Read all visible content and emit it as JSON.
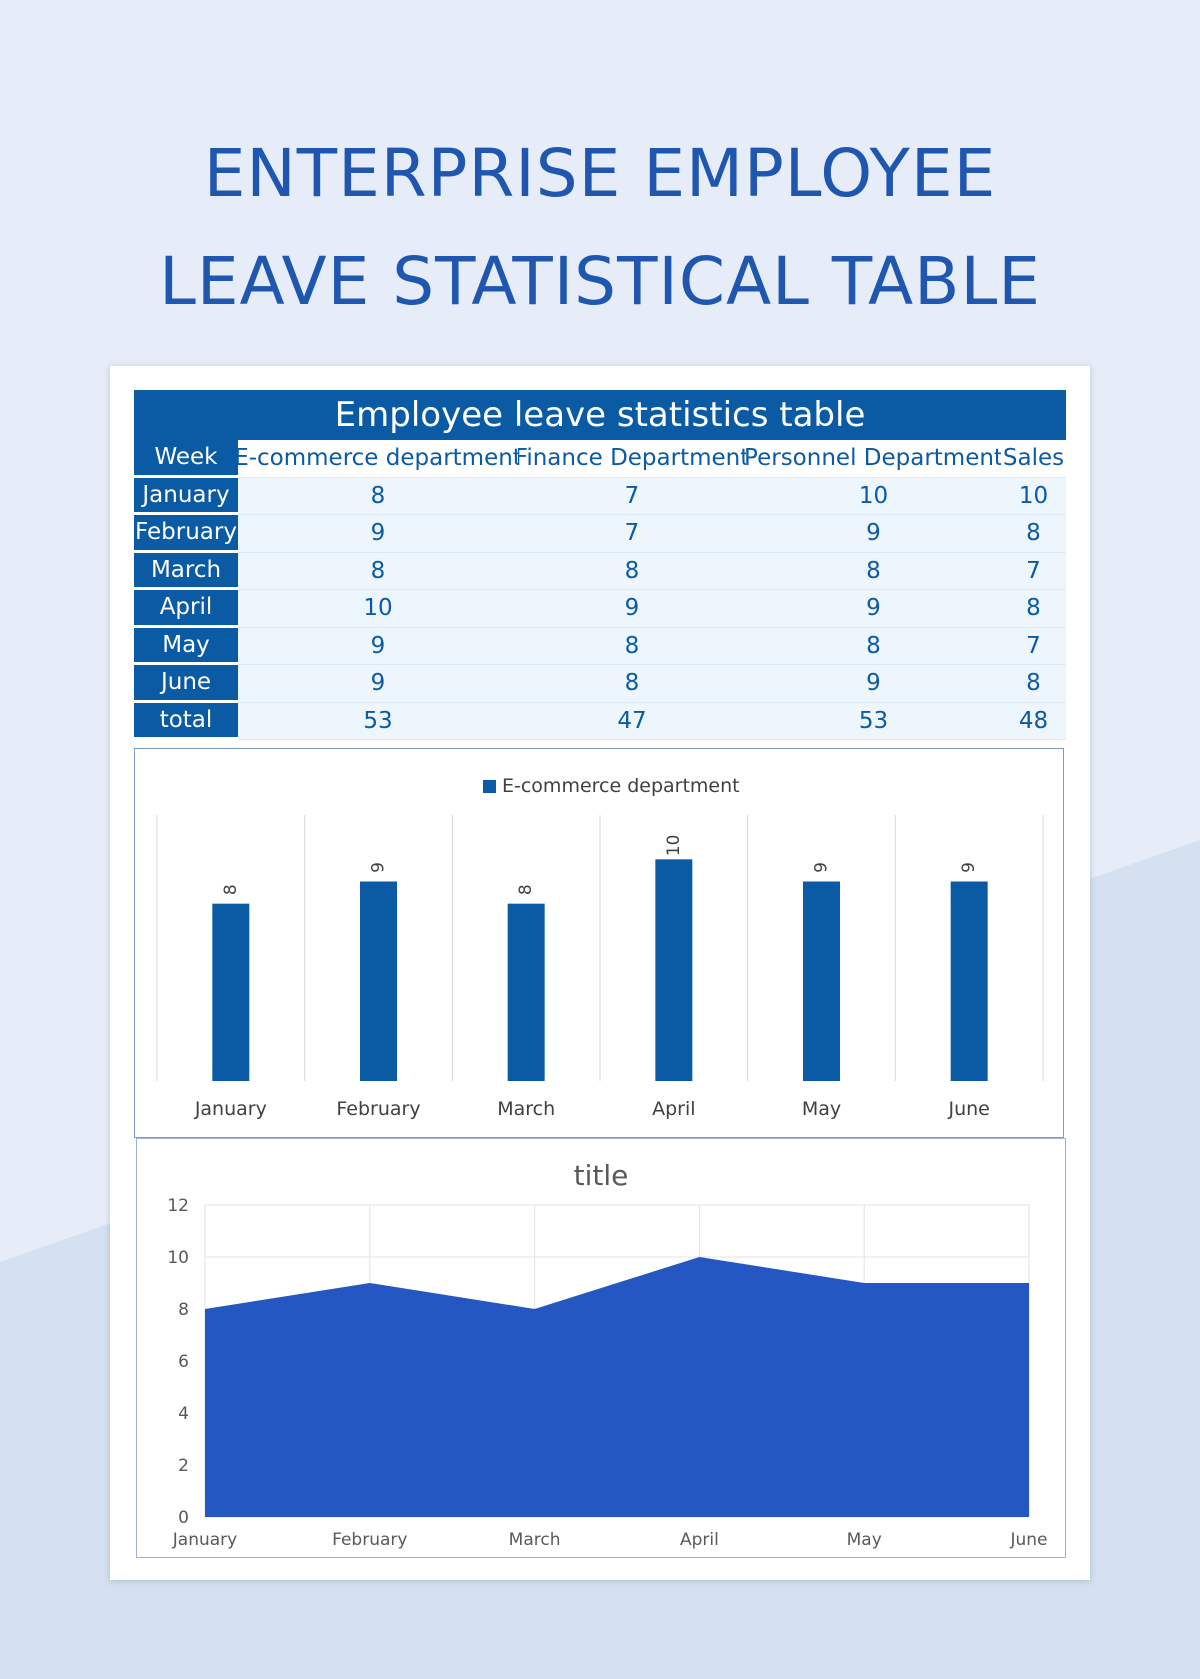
{
  "page": {
    "title_line1": "ENTERPRISE EMPLOYEE",
    "title_line2": "LEAVE STATISTICAL TABLE"
  },
  "colors": {
    "primary": "#0b5aa4",
    "area": "#2457c2",
    "title": "#1f56b0",
    "background": "#e6edf8"
  },
  "table": {
    "title": "Employee leave statistics table",
    "headers": [
      "Week",
      "E-commerce department",
      "Finance Department",
      "Personnel Department",
      "Sales"
    ],
    "rows": [
      {
        "label": "January",
        "values": [
          "8",
          "7",
          "10",
          "10"
        ]
      },
      {
        "label": "February",
        "values": [
          "9",
          "7",
          "9",
          "8"
        ]
      },
      {
        "label": "March",
        "values": [
          "8",
          "8",
          "8",
          "7"
        ]
      },
      {
        "label": "April",
        "values": [
          "10",
          "9",
          "9",
          "8"
        ]
      },
      {
        "label": "May",
        "values": [
          "9",
          "8",
          "8",
          "7"
        ]
      },
      {
        "label": "June",
        "values": [
          "9",
          "8",
          "9",
          "8"
        ]
      },
      {
        "label": "total",
        "values": [
          "53",
          "47",
          "53",
          "48"
        ]
      }
    ]
  },
  "chart_data": [
    {
      "type": "bar",
      "title": "",
      "legend": "top",
      "categories": [
        "January",
        "February",
        "March",
        "April",
        "May",
        "June"
      ],
      "series": [
        {
          "name": "E-commerce department",
          "values": [
            8,
            9,
            8,
            10,
            9,
            9
          ]
        }
      ],
      "data_labels": true,
      "ylim": [
        0,
        12
      ],
      "grid": "vertical"
    },
    {
      "type": "area",
      "title": "title",
      "categories": [
        "January",
        "February",
        "March",
        "April",
        "May",
        "June"
      ],
      "series": [
        {
          "values": [
            8,
            9,
            8,
            10,
            9,
            9
          ]
        }
      ],
      "yticks": [
        0,
        2,
        4,
        6,
        8,
        10,
        12
      ],
      "ylim": [
        0,
        12
      ],
      "grid": true
    }
  ]
}
